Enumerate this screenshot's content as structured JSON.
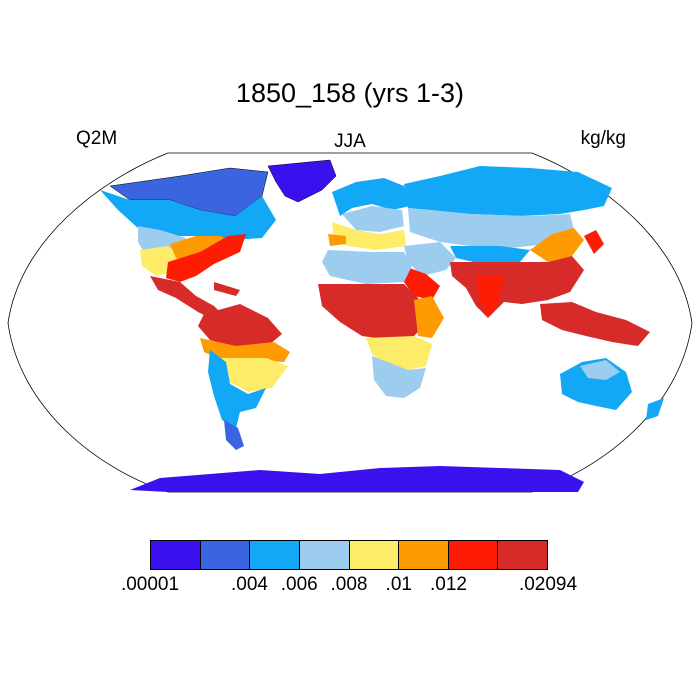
{
  "title": "1850_158 (yrs 1-3)",
  "left_label": "Q2M",
  "center_label": "JJA",
  "right_label": "kg/kg",
  "legend": {
    "colors": [
      "#3a10ee",
      "#3a64e0",
      "#12a8f5",
      "#9ccdef",
      "#fdec67",
      "#fe9a02",
      "#fe1d04",
      "#d62b29"
    ],
    "tick_labels": [
      ".00001",
      "",
      ".004",
      ".006",
      ".008",
      ".01",
      ".012",
      "",
      ".02094"
    ]
  },
  "map": {
    "projection": "robinson",
    "variable": "Q2M",
    "season": "JJA",
    "units": "kg/kg",
    "land_color_classes": {
      "polar": "#3a10ee",
      "subpolar": "#3a64e0",
      "cool": "#12a8f5",
      "temperate": "#9ccdef",
      "mild": "#fdec67",
      "warm": "#fe9a02",
      "humid": "#fe1d04",
      "tropical": "#d62b29"
    }
  }
}
